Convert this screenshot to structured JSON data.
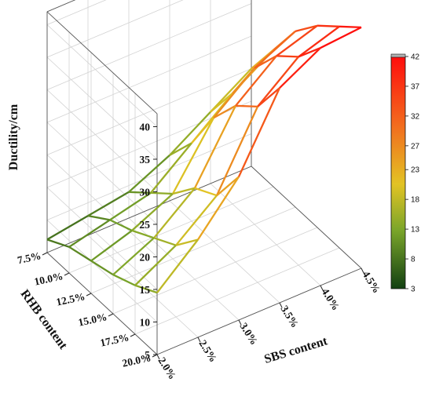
{
  "chart_data": {
    "type": "surface",
    "x_label": "SBS content",
    "y_label": "RHB content",
    "z_label": "Ductility/cm",
    "x_ticks": [
      "2.0%",
      "2.5%",
      "3.0%",
      "3.5%",
      "4.0%",
      "4.5%"
    ],
    "y_ticks": [
      "7.5%",
      "10.0%",
      "12.5%",
      "15.0%",
      "17.5%",
      "20.0%"
    ],
    "z_ticks": [
      "5",
      "10",
      "15",
      "20",
      "25",
      "30",
      "35",
      "40"
    ],
    "zlim": [
      5,
      42
    ],
    "colorbar_ticks": [
      "3",
      "8",
      "13",
      "18",
      "23",
      "27",
      "32",
      "37",
      "42"
    ],
    "colorbar_range": [
      3,
      42
    ],
    "colors": {
      "low": "#1a4d1a",
      "mid_low": "#8ab020",
      "mid": "#e8c020",
      "mid_high": "#f07020",
      "high": "#ff1010"
    },
    "grid": true,
    "sbs": [
      2.0,
      2.5,
      3.0,
      3.5,
      4.0,
      4.5
    ],
    "rhb": [
      7.5,
      10.0,
      12.5,
      15.0,
      17.5,
      20.0
    ],
    "z": [
      [
        14.5,
        20,
        27,
        38,
        41.5,
        42
      ],
      [
        12.5,
        16,
        21,
        32,
        37,
        39
      ],
      [
        11,
        14,
        19,
        29,
        34,
        36
      ],
      [
        10,
        12,
        15,
        24,
        29,
        32
      ],
      [
        9,
        10.5,
        12,
        17,
        22,
        26
      ],
      [
        7,
        8,
        9,
        12,
        16,
        20
      ]
    ]
  }
}
